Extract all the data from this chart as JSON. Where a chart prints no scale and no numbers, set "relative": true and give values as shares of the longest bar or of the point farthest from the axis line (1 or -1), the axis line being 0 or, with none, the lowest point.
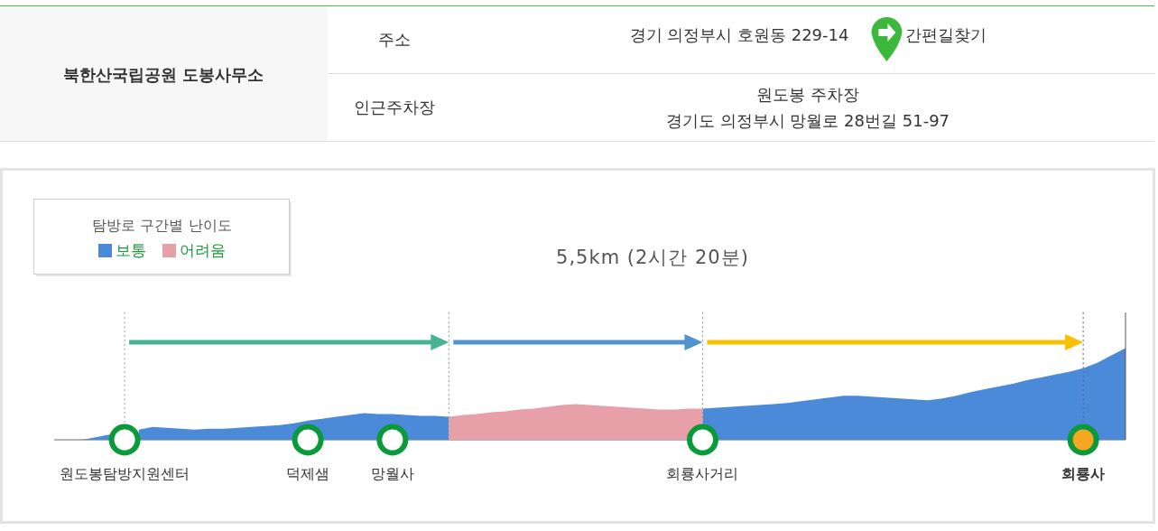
{
  "chart_data": {
    "type": "area",
    "title": "5,5km (2시간 20분)",
    "legend_title": "탐방로 구간별 난이도",
    "legend": "top left",
    "relative": true,
    "tick_labels": "x",
    "categories": [
      null,
      null,
      null,
      null,
      null,
      "원도봉탐방지원센터",
      null,
      null,
      null,
      null,
      null,
      null,
      null,
      null,
      null,
      null,
      null,
      null,
      "덕제샘",
      null,
      null,
      null,
      null,
      null,
      "망월사",
      null,
      null,
      null,
      null,
      null,
      null,
      null,
      null,
      null,
      null,
      null,
      null,
      null,
      null,
      null,
      null,
      null,
      null,
      null,
      null,
      null,
      "회룡사거리",
      null,
      null,
      null,
      null,
      null,
      null,
      null,
      null,
      null,
      null,
      null,
      null,
      null,
      null,
      null,
      null,
      null,
      null,
      null,
      null,
      null,
      null,
      null,
      null,
      null,
      null,
      "회룡사",
      null,
      null,
      null
    ],
    "series": [
      {
        "name": "보통",
        "color": "#4a8ad8",
        "values": [
          0,
          0,
          0,
          0.03,
          0.06,
          null,
          0.11,
          0.14,
          0.13,
          0.12,
          0.11,
          0.12,
          0.12,
          0.13,
          0.14,
          0.15,
          0.16,
          0.18,
          0.21,
          0.23,
          0.25,
          0.27,
          0.29,
          0.28,
          0.28,
          0.27,
          0.26,
          0.26,
          0.25,
          null,
          null,
          null,
          null,
          null,
          null,
          null,
          null,
          null,
          null,
          null,
          null,
          null,
          null,
          null,
          null,
          null,
          0.34,
          0.35,
          0.36,
          0.37,
          0.38,
          0.39,
          0.4,
          0.42,
          0.44,
          0.46,
          0.48,
          0.48,
          0.47,
          0.46,
          0.45,
          0.44,
          0.43,
          0.45,
          0.48,
          0.52,
          0.55,
          0.58,
          0.61,
          0.65,
          0.68,
          0.71,
          0.74,
          0.78,
          0.84,
          0.92,
          1
        ]
      },
      {
        "name": "어려움",
        "color": "#e8a0a8",
        "values": [
          null,
          null,
          null,
          null,
          null,
          null,
          null,
          null,
          null,
          null,
          null,
          null,
          null,
          null,
          null,
          null,
          null,
          null,
          null,
          null,
          null,
          null,
          null,
          null,
          null,
          null,
          null,
          null,
          0.25,
          0.27,
          0.28,
          0.3,
          0.31,
          0.33,
          0.34,
          0.36,
          0.38,
          0.39,
          0.38,
          0.37,
          0.36,
          0.35,
          0.34,
          0.33,
          0.33,
          0.34,
          0.34,
          null,
          null,
          null,
          null,
          null,
          null,
          null,
          null,
          null,
          null,
          null,
          null,
          null,
          null,
          null,
          null,
          null,
          null,
          null,
          null,
          null,
          null,
          null,
          null,
          null,
          null,
          null,
          null,
          null,
          null
        ]
      },
      {
        "type": "scatter",
        "color": "#0a9a3a",
        "colors": [
          null,
          null,
          null,
          null,
          null,
          "#ffffff",
          null,
          null,
          null,
          null,
          null,
          null,
          null,
          null,
          null,
          null,
          null,
          null,
          "#ffffff",
          null,
          null,
          null,
          null,
          null,
          "#ffffff",
          null,
          null,
          null,
          null,
          null,
          null,
          null,
          null,
          null,
          null,
          null,
          null,
          null,
          null,
          null,
          null,
          null,
          null,
          null,
          null,
          null,
          "#ffffff",
          null,
          null,
          null,
          null,
          null,
          null,
          null,
          null,
          null,
          null,
          null,
          null,
          null,
          null,
          null,
          null,
          null,
          null,
          null,
          null,
          null,
          null,
          null,
          null,
          null,
          null,
          "#f5a623",
          null,
          null,
          null
        ],
        "values": [
          null,
          null,
          null,
          null,
          null,
          0,
          null,
          null,
          null,
          null,
          null,
          null,
          null,
          null,
          null,
          null,
          null,
          null,
          0,
          null,
          null,
          null,
          null,
          null,
          0,
          null,
          null,
          null,
          null,
          null,
          null,
          null,
          null,
          null,
          null,
          null,
          null,
          null,
          null,
          null,
          null,
          null,
          null,
          null,
          null,
          null,
          0,
          null,
          null,
          null,
          null,
          null,
          null,
          null,
          null,
          null,
          null,
          null,
          null,
          null,
          null,
          null,
          null,
          null,
          null,
          null,
          null,
          null,
          null,
          null,
          null,
          null,
          null,
          0,
          null,
          null,
          null
        ]
      }
    ],
    "ref_lines": [
      {
        "axis": "x",
        "value": "원도봉탐방지원센터",
        "color": "#999999",
        "line_style": "dotted"
      },
      {
        "axis": "x",
        "value": "회룡사거리",
        "color": "#999999",
        "line_style": "dotted"
      },
      {
        "axis": "x",
        "value": "회룡사",
        "color": "#666666",
        "line_style": "dotted"
      }
    ],
    "annotations": [
      "북한산국립공원 도봉사무소",
      "주소",
      "경기 의정부시 호원동 229-14",
      "간편길찾기",
      "인근주차장",
      "원도봉 주차장\n경기도 의정부시 망월로 28번길 51-97"
    ]
  }
}
